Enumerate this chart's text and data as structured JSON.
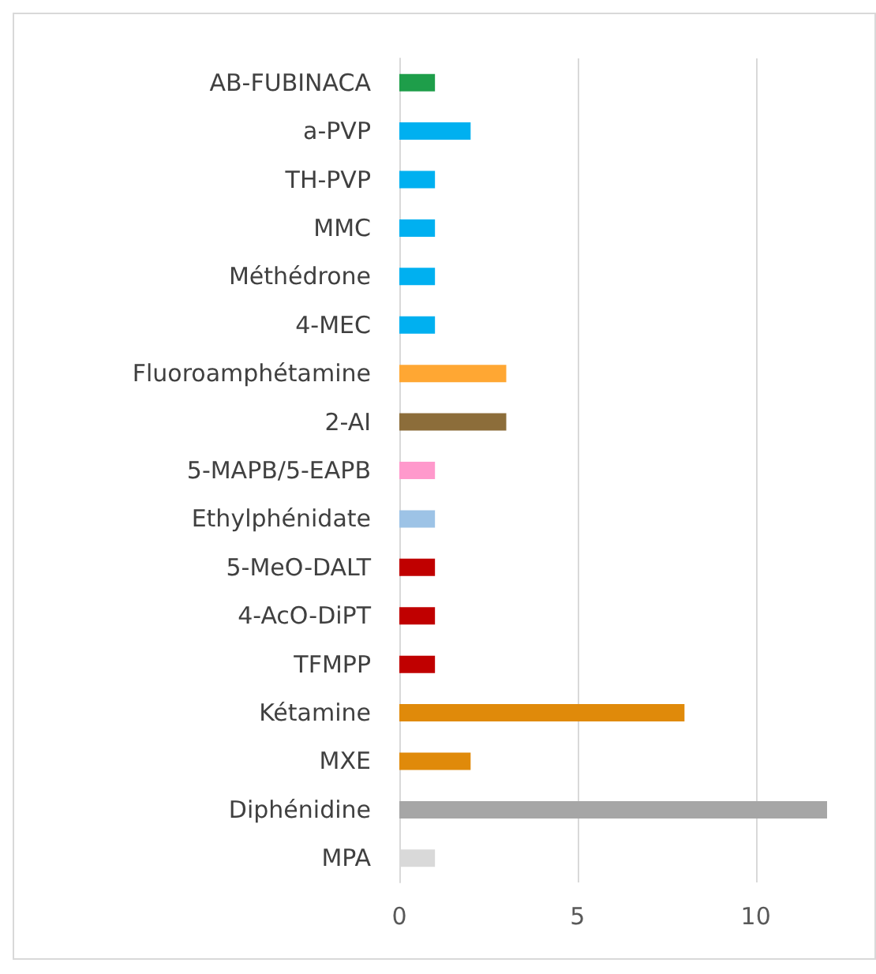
{
  "chart_data": {
    "type": "bar",
    "orientation": "horizontal",
    "categories": [
      "AB-FUBINACA",
      "a-PVP",
      "TH-PVP",
      "MMC",
      "Méthédrone",
      "4-MEC",
      "Fluoroamphétamine",
      "2-AI",
      "5-MAPB/5-EAPB",
      "Ethylphénidate",
      "5-MeO-DALT",
      "4-AcO-DiPT",
      "TFMPP",
      "Kétamine",
      "MXE",
      "Diphénidine",
      "MPA"
    ],
    "values": [
      1,
      2,
      1,
      1,
      1,
      1,
      3,
      3,
      1,
      1,
      1,
      1,
      1,
      8,
      2,
      12,
      1
    ],
    "colors": [
      "#1e9e4a",
      "#00b0f0",
      "#00b0f0",
      "#00b0f0",
      "#00b0f0",
      "#00b0f0",
      "#ffa733",
      "#8c6d3a",
      "#ff99cc",
      "#9dc3e6",
      "#c00000",
      "#c00000",
      "#c00000",
      "#e08a0a",
      "#e08a0a",
      "#a6a6a6",
      "#d9d9d9"
    ],
    "xlim": [
      0,
      12
    ],
    "xticks": [
      0,
      5,
      10
    ],
    "grid": "x"
  }
}
